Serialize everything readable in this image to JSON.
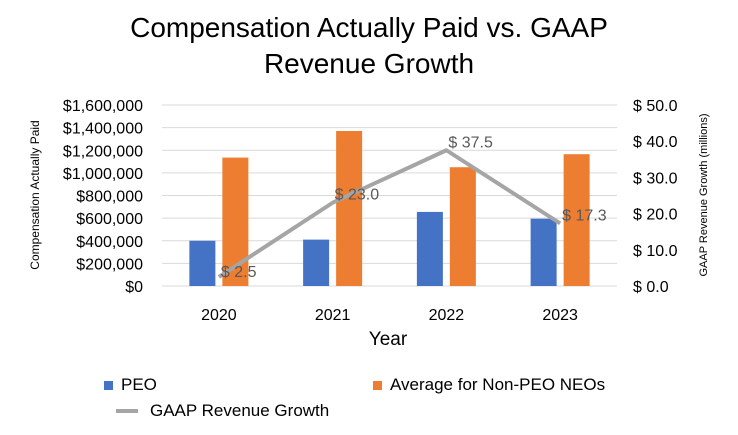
{
  "chart_data": {
    "type": "bar",
    "title_line1": "Compensation Actually Paid vs. GAAP",
    "title_line2": "Revenue Growth",
    "xlabel": "Year",
    "ylabel": "Compensation Actually Paid",
    "y2label": "GAAP Revenue Growth (millions)",
    "categories": [
      "2020",
      "2021",
      "2022",
      "2023"
    ],
    "ylim": [
      0,
      1600000
    ],
    "y2lim": [
      0,
      50
    ],
    "y_ticks": [
      "$0",
      "$200,000",
      "$400,000",
      "$600,000",
      "$800,000",
      "$1,000,000",
      "$1,200,000",
      "$1,400,000",
      "$1,600,000"
    ],
    "y2_ticks": [
      "$ 0.0",
      "$ 10.0",
      "$ 20.0",
      "$ 30.0",
      "$ 40.0",
      "$ 50.0"
    ],
    "grid": true,
    "legend_position": "bottom",
    "series": [
      {
        "name": "PEO",
        "type": "bar",
        "axis": "left",
        "color": "#4472C4",
        "values": [
          400000,
          410000,
          655000,
          595000
        ]
      },
      {
        "name": "Average for Non-PEO NEOs",
        "type": "bar",
        "axis": "left",
        "color": "#ED7D31",
        "values": [
          1135000,
          1370000,
          1050000,
          1165000
        ]
      },
      {
        "name": "GAAP Revenue Growth",
        "type": "line",
        "axis": "right",
        "color": "#A5A5A5",
        "values": [
          2.5,
          23.0,
          37.5,
          17.3
        ],
        "labels": [
          "$ 2.5",
          "$ 23.0",
          "$ 37.5",
          "$ 17.3"
        ]
      }
    ]
  }
}
